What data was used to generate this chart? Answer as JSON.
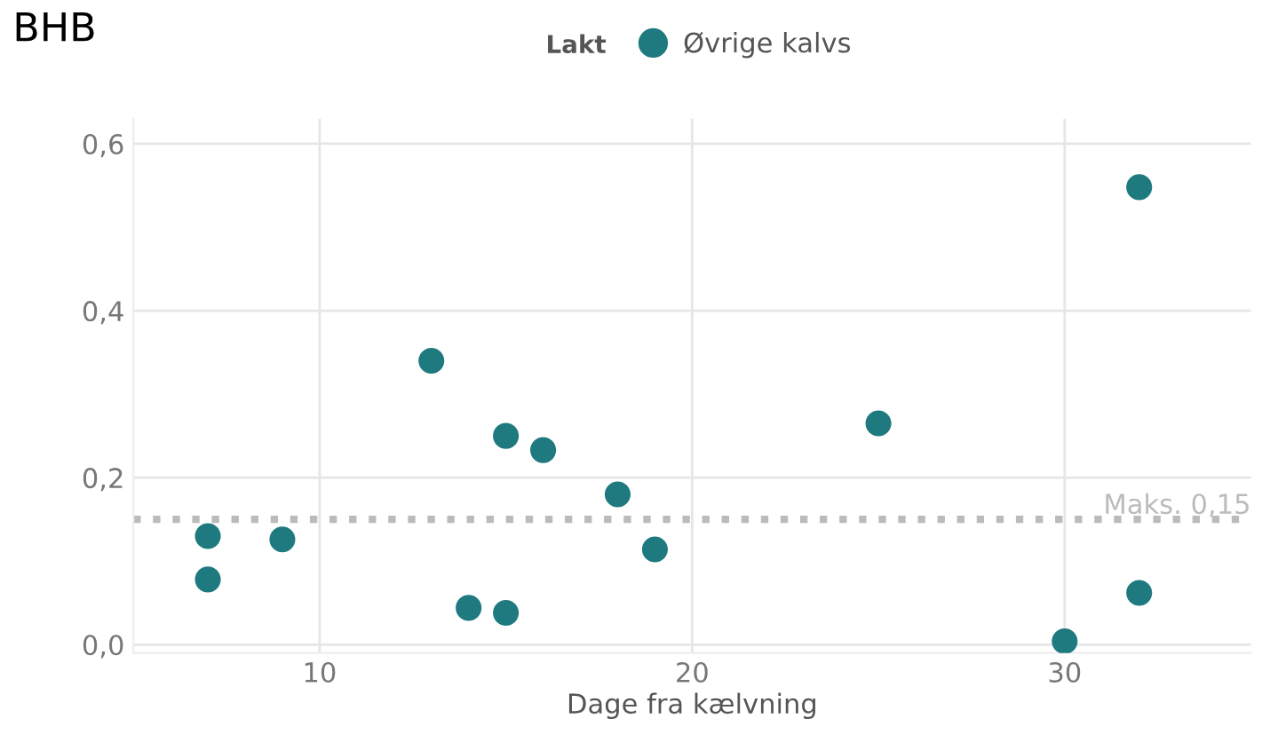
{
  "chart_data": {
    "type": "scatter",
    "title": "BHB",
    "legend_title": "Lakt",
    "xlabel": "Dage fra kælvning",
    "x": [
      7,
      7,
      9,
      13,
      14,
      15,
      15,
      16,
      18,
      19,
      25,
      30,
      32,
      32
    ],
    "series": [
      {
        "name": "Øvrige kalvs",
        "color": "#1f7a80",
        "values": [
          0.13,
          0.078,
          0.126,
          0.34,
          0.044,
          0.25,
          0.038,
          0.233,
          0.18,
          0.114,
          0.265,
          0.004,
          0.548,
          0.062
        ]
      }
    ],
    "xlim": [
      5,
      35
    ],
    "xticks": [
      10,
      20,
      30
    ],
    "ylim": [
      -0.01,
      0.63
    ],
    "yticks": [
      {
        "value": 0,
        "label": "0,0"
      },
      {
        "value": 0.2,
        "label": "0,2"
      },
      {
        "value": 0.4,
        "label": "0,4"
      },
      {
        "value": 0.6,
        "label": "0,6"
      }
    ],
    "ref_lines": [
      {
        "axis": "y",
        "value": 0.15,
        "label": "Maks. 0,15",
        "color": "#bbbbbb",
        "line_style": "dotted"
      }
    ],
    "grid": true,
    "legend": "top",
    "marker": "circle"
  }
}
